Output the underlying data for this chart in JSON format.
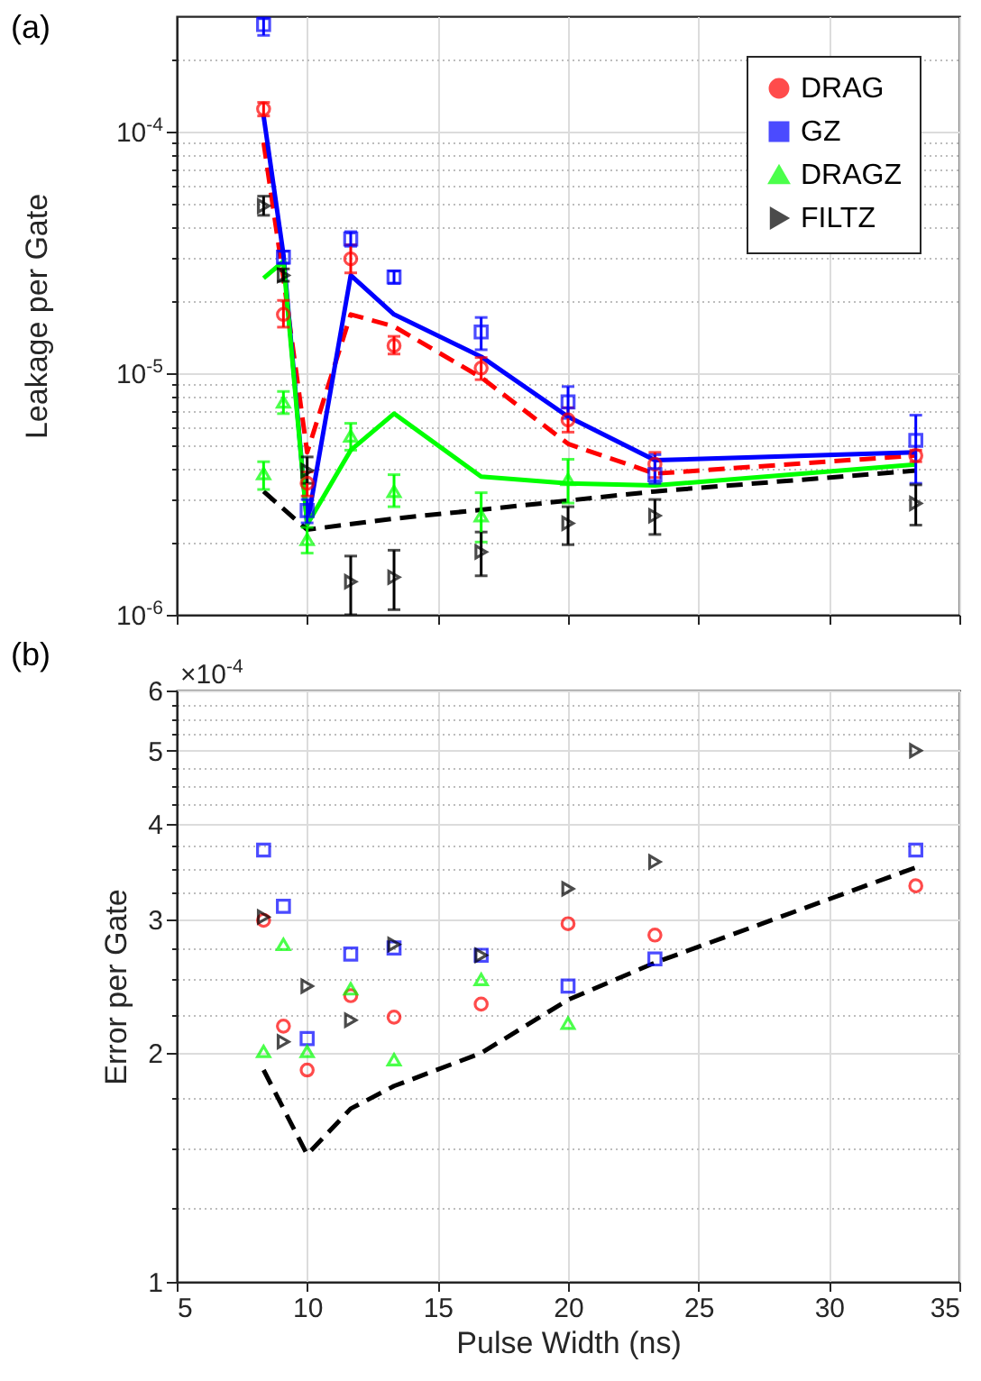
{
  "chart_data": [
    {
      "type": "scatter",
      "title": "(a)",
      "ylabel": "Leakage per Gate",
      "log": "y",
      "grid": true,
      "legend": "top right",
      "tick_labels": "y",
      "xlim": [
        5,
        35
      ],
      "xticks": [
        5,
        10,
        15,
        20,
        25,
        30,
        35
      ],
      "ylim": [
        1e-06,
        0.0003
      ],
      "yticks": [
        {
          "value": 1e-06,
          "label": "10$^{-6}$"
        },
        {
          "value": 2e-06,
          "label": null
        },
        {
          "value": 3e-06,
          "label": null
        },
        {
          "value": 4e-06,
          "label": null
        },
        {
          "value": 5e-06,
          "label": null
        },
        {
          "value": 6e-06,
          "label": null
        },
        {
          "value": 7e-06,
          "label": null
        },
        {
          "value": 8e-06,
          "label": null
        },
        {
          "value": 9e-06,
          "label": null
        },
        {
          "value": 1e-05,
          "label": "10$^{-5}$"
        },
        {
          "value": 2e-05,
          "label": null
        },
        {
          "value": 3e-05,
          "label": null
        },
        {
          "value": 4e-05,
          "label": null
        },
        {
          "value": 5e-05,
          "label": null
        },
        {
          "value": 6e-05,
          "label": null
        },
        {
          "value": 7e-05,
          "label": null
        },
        {
          "value": 8e-05,
          "label": null
        },
        {
          "value": 9e-05,
          "label": null
        },
        {
          "value": 0.0001,
          "label": "10$^{-4}$"
        },
        {
          "value": 0.0002,
          "label": null
        }
      ],
      "x": [
        8.33,
        9.09,
        10,
        11.67,
        13.33,
        16.67,
        20,
        23.33,
        33.33
      ],
      "series": [
        {
          "type": "line",
          "color": "#ff0000",
          "line_style": "dashed",
          "marker": "none",
          "x": [
            8.33,
            9.09,
            10,
            11.67,
            13.33,
            16.67,
            20,
            23.33,
            33.33
          ],
          "values": [
            9e-05,
            2.47e-05,
            4.7e-06,
            1.75e-05,
            1.56e-05,
            9.6e-06,
            5.1e-06,
            3.84e-06,
            4.56e-06
          ]
        },
        {
          "type": "line",
          "color": "#0000ff",
          "line_style": "solid",
          "marker": "none",
          "x": [
            8.33,
            9.09,
            10,
            11.67,
            13.33,
            16.67,
            20,
            23.33,
            33.33
          ],
          "values": [
            0.000116,
            3.1e-05,
            2.36e-06,
            2.54e-05,
            1.75e-05,
            1.17e-05,
            6.6e-06,
            4.36e-06,
            4.7e-06
          ]
        },
        {
          "type": "line",
          "color": "#00ff00",
          "line_style": "solid",
          "marker": "none",
          "x": [
            8.33,
            9.09,
            10,
            11.67,
            13.33,
            16.67,
            20,
            23.33,
            33.33
          ],
          "values": [
            2.47e-05,
            2.9e-05,
            2.36e-06,
            4.8e-06,
            6.8e-06,
            3.73e-06,
            3.5e-06,
            3.43e-06,
            4.19e-06
          ]
        },
        {
          "type": "line",
          "color": "#000000",
          "line_style": "dashed",
          "marker": "none",
          "x": [
            8.33,
            10,
            13.33,
            16.67,
            20,
            23.33,
            33.33
          ],
          "values": [
            3.24e-06,
            2.25e-06,
            2.5e-06,
            2.72e-06,
            2.97e-06,
            3.24e-06,
            3.95e-06
          ]
        },
        {
          "name": "DRAG",
          "type": "scatter",
          "color": "#ff0000",
          "marker": "circle",
          "values": [
            0.000124,
            1.75e-05,
            3.5e-06,
            2.97e-05,
            1.3e-05,
            1.05e-05,
            6.4e-06,
            4.2e-06,
            4.56e-06
          ],
          "errors": [
            [
              0.000116,
              0.000132
            ],
            [
              1.55e-05,
              2e-05
            ],
            [
              3.1e-06,
              3.9e-06
            ],
            [
              2.6e-05,
              3.4e-05
            ],
            [
              1.2e-05,
              1.42e-05
            ],
            [
              9.4e-06,
              1.16e-05
            ],
            [
              5.7e-06,
              7.2e-06
            ],
            [
              3.7e-06,
              4.7e-06
            ],
            [
              4.3e-06,
              4.8e-06
            ]
          ]
        },
        {
          "name": "GZ",
          "type": "scatter",
          "color": "#0000ff",
          "marker": "square",
          "values": [
            0.000277,
            3.02e-05,
            2.7e-06,
            3.59e-05,
            2.5e-05,
            1.48e-05,
            7.6e-06,
            3.8e-06,
            5.27e-06
          ],
          "errors": [
            [
              0.00025,
              0.000295
            ],
            [
              2.85e-05,
              3.2e-05
            ],
            [
              2.4e-06,
              3e-06
            ],
            [
              3.35e-05,
              3.85e-05
            ],
            [
              2.35e-05,
              2.65e-05
            ],
            [
              1.25e-05,
              1.7e-05
            ],
            [
              6.5e-06,
              8.8e-06
            ],
            [
              3.5e-06,
              4.6e-06
            ],
            [
              3.5e-06,
              6.7e-06
            ]
          ]
        },
        {
          "name": "DRAGZ",
          "type": "scatter",
          "color": "#00ff00",
          "marker": "triangle",
          "values": [
            3.84e-06,
            7.6e-06,
            2.05e-06,
            5.5e-06,
            3.24e-06,
            2.57e-06,
            3.63e-06,
            null,
            null
          ],
          "errors": [
            [
              3.3e-06,
              4.3e-06
            ],
            [
              6.8e-06,
              8.4e-06
            ],
            [
              1.8e-06,
              2.3e-06
            ],
            [
              4.8e-06,
              6.2e-06
            ],
            [
              2.8e-06,
              3.8e-06
            ],
            [
              2e-06,
              3.2e-06
            ],
            [
              2.9e-06,
              4.4e-06
            ],
            null,
            null
          ]
        },
        {
          "name": "FILTZ",
          "type": "scatter",
          "color": "#000000",
          "marker": "triangle-right",
          "values": [
            4.92e-05,
            2.54e-05,
            3.95e-06,
            1.37e-06,
            1.43e-06,
            1.82e-06,
            2.39e-06,
            2.57e-06,
            2.89e-06
          ],
          "errors": [
            [
              4.5e-05,
              5.4e-05
            ],
            [
              2.4e-05,
              2.7e-05
            ],
            [
              3.5e-06,
              4.5e-06
            ],
            [
              1e-06,
              1.75e-06
            ],
            [
              1.05e-06,
              1.85e-06
            ],
            [
              1.45e-06,
              2.2e-06
            ],
            [
              1.95e-06,
              2.8e-06
            ],
            [
              2.15e-06,
              3e-06
            ],
            [
              2.35e-06,
              3.45e-06
            ]
          ]
        }
      ]
    },
    {
      "type": "scatter",
      "title": "(b)",
      "xlabel": "Pulse Width (ns)",
      "ylabel": "Error per Gate",
      "log": "y",
      "grid": true,
      "annotations": [
        "×10$^{-4}$"
      ],
      "xlim": [
        5,
        35
      ],
      "xticks": [
        5,
        10,
        15,
        20,
        25,
        30,
        35
      ],
      "ylim": [
        1,
        6
      ],
      "yticks": [
        1,
        {
          "value": 1.25,
          "label": null
        },
        {
          "value": 1.5,
          "label": null
        },
        {
          "value": 1.75,
          "label": null
        },
        2,
        {
          "value": 2.25,
          "label": null
        },
        {
          "value": 2.5,
          "label": null
        },
        {
          "value": 2.75,
          "label": null
        },
        3,
        {
          "value": 3.25,
          "label": null
        },
        {
          "value": 3.5,
          "label": null
        },
        {
          "value": 3.75,
          "label": null
        },
        4,
        {
          "value": 4.25,
          "label": null
        },
        {
          "value": 4.5,
          "label": null
        },
        {
          "value": 4.75,
          "label": null
        },
        5,
        {
          "value": 5.25,
          "label": null
        },
        {
          "value": 5.5,
          "label": null
        },
        {
          "value": 5.75,
          "label": null
        },
        6
      ],
      "x": [
        8.33,
        9.09,
        10,
        11.67,
        13.33,
        16.67,
        20,
        23.33,
        33.33
      ],
      "series": [
        {
          "type": "line",
          "color": "#000000",
          "line_style": "dashed",
          "marker": "none",
          "values": [
            1.9,
            1.47,
            1.69,
            1.81,
            2.0,
            2.35,
            2.63,
            3.51
          ],
          "x": [
            8.33,
            10,
            11.67,
            13.33,
            16.67,
            20,
            23.33,
            33.33
          ]
        },
        {
          "type": "scatter",
          "color": "#ff0000",
          "marker": "circle",
          "values": [
            2.99,
            2.17,
            1.9,
            2.38,
            2.23,
            2.32,
            2.96,
            2.86,
            3.32
          ]
        },
        {
          "type": "scatter",
          "color": "#0000ff",
          "marker": "square",
          "values": [
            3.7,
            3.12,
            2.09,
            2.7,
            2.75,
            2.69,
            2.45,
            2.66,
            3.7
          ]
        },
        {
          "type": "scatter",
          "color": "#00ff00",
          "marker": "triangle",
          "values": [
            2.01,
            2.78,
            2.01,
            2.43,
            1.96,
            2.5,
            2.19,
            null,
            null
          ]
        },
        {
          "type": "scatter",
          "color": "#000000",
          "marker": "triangle-right",
          "values": [
            3.02,
            2.07,
            2.45,
            2.21,
            2.78,
            2.69,
            3.29,
            3.57,
            5.0
          ]
        }
      ]
    }
  ]
}
